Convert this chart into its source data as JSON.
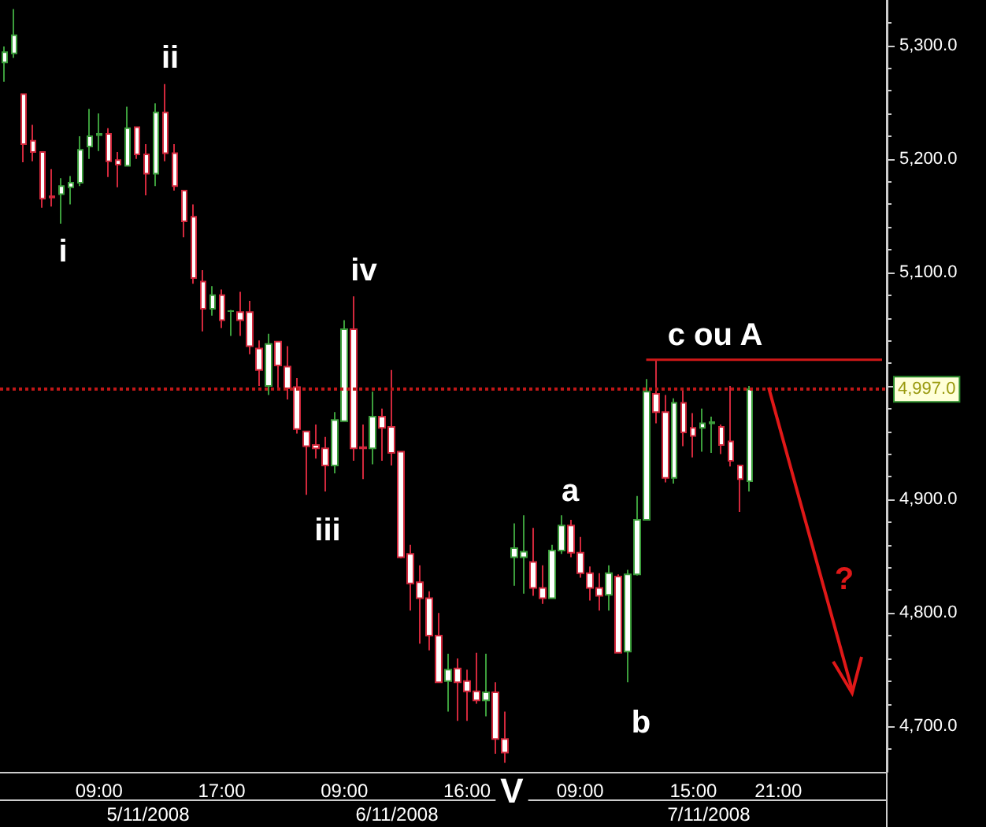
{
  "chart_data": {
    "type": "candlestick",
    "categories": [
      null,
      null,
      null,
      null,
      null,
      null,
      null,
      null,
      null,
      null,
      "09:00",
      null,
      null,
      null,
      null,
      null,
      null,
      null,
      null,
      null,
      null,
      null,
      null,
      "17:00",
      null,
      null,
      null,
      null,
      null,
      null,
      null,
      null,
      null,
      null,
      null,
      null,
      "09:00",
      null,
      null,
      null,
      null,
      null,
      null,
      null,
      null,
      null,
      null,
      null,
      null,
      "16:00",
      null,
      null,
      null,
      null,
      null,
      null,
      null,
      null,
      null,
      null,
      null,
      "09:00",
      null,
      null,
      null,
      null,
      null,
      null,
      null,
      null,
      null,
      null,
      null,
      "15:00",
      null,
      null,
      null,
      null,
      null,
      null,
      null,
      null,
      "21:00",
      null,
      null,
      null,
      null,
      null,
      null,
      null,
      null,
      null,
      null,
      null
    ],
    "series": [
      {
        "colors": [
          "#3c9e3c",
          "#3c9e3c",
          "#d2283c",
          "#d2283c",
          "#d2283c",
          "#d2283c",
          "#3c9e3c",
          "#3c9e3c",
          "#3c9e3c",
          "#3c9e3c",
          "#3c9e3c",
          "#d2283c",
          "#d2283c",
          "#3c9e3c",
          "#d2283c",
          "#d2283c",
          "#3c9e3c",
          "#d2283c",
          "#d2283c",
          "#d2283c",
          "#d2283c",
          "#d2283c",
          "#3c9e3c",
          "#d2283c",
          "#3c9e3c",
          "#d2283c",
          "#d2283c",
          "#d2283c",
          "#3c9e3c",
          "#d2283c",
          "#d2283c",
          "#d2283c",
          "#d2283c",
          "#d2283c",
          "#d2283c",
          "#3c9e3c",
          "#3c9e3c",
          "#d2283c",
          "#d2283c",
          "#3c9e3c",
          "#d2283c",
          "#d2283c",
          "#d2283c",
          "#d2283c",
          "#d2283c",
          "#d2283c",
          "#d2283c",
          "#3c9e3c",
          "#d2283c",
          "#d2283c",
          "#d2283c",
          "#3c9e3c",
          "#d2283c",
          "#d2283c",
          "#3c9e3c",
          "#3c9e3c",
          "#d2283c",
          "#d2283c",
          "#3c9e3c",
          "#3c9e3c",
          "#d2283c",
          "#d2283c",
          "#d2283c",
          "#d2283c",
          "#3c9e3c",
          "#d2283c",
          "#3c9e3c",
          "#3c9e3c",
          "#3c9e3c",
          "#d2283c",
          "#d2283c",
          "#3c9e3c",
          "#d2283c",
          "#d2283c",
          "#3c9e3c",
          "#3c9e3c",
          "#d2283c",
          "#d2283c",
          "#d2283c",
          "#3c9e3c",
          null,
          null,
          null,
          null,
          null,
          null,
          null,
          null,
          null,
          null,
          null,
          null,
          null,
          null
        ],
        "ohlc": [
          [
            5285,
            5299,
            5268,
            5294
          ],
          [
            5293,
            5332,
            5289,
            5309
          ],
          [
            5257,
            5257,
            5197,
            5213
          ],
          [
            5216,
            5230,
            5198,
            5206
          ],
          [
            5206,
            5206,
            5157,
            5165
          ],
          [
            5167,
            5191,
            5158,
            5166
          ],
          [
            5169,
            5183,
            5143,
            5176
          ],
          [
            5175,
            5185,
            5160,
            5179
          ],
          [
            5179,
            5220,
            5176,
            5208
          ],
          [
            5211,
            5244,
            5200,
            5220
          ],
          [
            5221,
            5240,
            5207,
            5222
          ],
          [
            5222,
            5227,
            5184,
            5198
          ],
          [
            5199,
            5206,
            5175,
            5195
          ],
          [
            5194,
            5246,
            5194,
            5227
          ],
          [
            5228,
            5228,
            5200,
            5204
          ],
          [
            5204,
            5213,
            5168,
            5187
          ],
          [
            5187,
            5249,
            5176,
            5241
          ],
          [
            5241,
            5266,
            5198,
            5205
          ],
          [
            5205,
            5213,
            5172,
            5176
          ],
          [
            5172,
            5172,
            5131,
            5145
          ],
          [
            5149,
            5160,
            5090,
            5095
          ],
          [
            5092,
            5102,
            5048,
            5068
          ],
          [
            5068,
            5088,
            5062,
            5080
          ],
          [
            5080,
            5085,
            5051,
            5058
          ],
          [
            5066,
            5067,
            5044,
            5066
          ],
          [
            5065,
            5083,
            5044,
            5058
          ],
          [
            5065,
            5075,
            5028,
            5035
          ],
          [
            5033,
            5040,
            5000,
            5014
          ],
          [
            5000,
            5046,
            4992,
            5037
          ],
          [
            5039,
            5039,
            4996,
            5018
          ],
          [
            5017,
            5035,
            4988,
            4998
          ],
          [
            4999,
            5007,
            4958,
            4962
          ],
          [
            4960,
            4960,
            4904,
            4947
          ],
          [
            4948,
            4966,
            4936,
            4945
          ],
          [
            4945,
            4955,
            4907,
            4930
          ],
          [
            4930,
            4977,
            4923,
            4970
          ],
          [
            4969,
            5058,
            4969,
            5050
          ],
          [
            5050,
            5079,
            4934,
            4945
          ],
          [
            4946,
            4966,
            4918,
            4945
          ],
          [
            4945,
            4995,
            4931,
            4973
          ],
          [
            4973,
            4980,
            4934,
            4963
          ],
          [
            4964,
            5014,
            4930,
            4941
          ],
          [
            4942,
            4942,
            4848,
            4849
          ],
          [
            4852,
            4860,
            4802,
            4826
          ],
          [
            4827,
            4842,
            4773,
            4813
          ],
          [
            4813,
            4819,
            4767,
            4780
          ],
          [
            4780,
            4800,
            4739,
            4739
          ],
          [
            4740,
            4764,
            4713,
            4750
          ],
          [
            4751,
            4760,
            4705,
            4739
          ],
          [
            4740,
            4750,
            4705,
            4731
          ],
          [
            4731,
            4765,
            4720,
            4723
          ],
          [
            4723,
            4764,
            4709,
            4730
          ],
          [
            4730,
            4739,
            4676,
            4689
          ],
          [
            4689,
            4713,
            4668,
            4677
          ],
          [
            4849,
            4879,
            4824,
            4857
          ],
          [
            4849,
            4886,
            4817,
            4854
          ],
          [
            4845,
            4875,
            4815,
            4822
          ],
          [
            4822,
            4842,
            4808,
            4813
          ],
          [
            4813,
            4860,
            4813,
            4855
          ],
          [
            4855,
            4886,
            4852,
            4877
          ],
          [
            4877,
            4882,
            4849,
            4853
          ],
          [
            4853,
            4867,
            4831,
            4835
          ],
          [
            4835,
            4841,
            4811,
            4822
          ],
          [
            4822,
            4835,
            4802,
            4815
          ],
          [
            4816,
            4842,
            4802,
            4835
          ],
          [
            4832,
            4834,
            4765,
            4765
          ],
          [
            4766,
            4838,
            4739,
            4834
          ],
          [
            4834,
            4903,
            4833,
            4882
          ],
          [
            4882,
            5006,
            4882,
            4995
          ],
          [
            4993,
            5023,
            4967,
            4977
          ],
          [
            4977,
            4992,
            4915,
            4919
          ],
          [
            4919,
            4989,
            4914,
            4985
          ],
          [
            4985,
            4996,
            4947,
            4959
          ],
          [
            4963,
            4976,
            4937,
            4956
          ],
          [
            4963,
            4980,
            4942,
            4967
          ],
          [
            4967,
            4973,
            4941,
            4968
          ],
          [
            4964,
            4966,
            4940,
            4948
          ],
          [
            4951,
            5000,
            4929,
            4934
          ],
          [
            4930,
            4930,
            4889,
            4918
          ],
          [
            4916,
            5000,
            4907,
            4997
          ],
          null,
          null,
          null,
          null,
          null,
          null,
          null,
          null,
          null,
          null,
          null,
          null,
          null,
          null
        ]
      },
      {
        "type": "line",
        "color": "#d01818",
        "marker": "none",
        "values": [
          null,
          null,
          null,
          null,
          null,
          null,
          null,
          null,
          null,
          null,
          null,
          null,
          null,
          null,
          null,
          null,
          null,
          null,
          null,
          null,
          null,
          null,
          null,
          null,
          null,
          null,
          null,
          null,
          null,
          null,
          null,
          null,
          null,
          null,
          null,
          null,
          null,
          null,
          null,
          null,
          null,
          null,
          null,
          null,
          null,
          null,
          null,
          null,
          null,
          null,
          null,
          null,
          null,
          null,
          null,
          null,
          null,
          null,
          null,
          null,
          null,
          null,
          null,
          null,
          null,
          null,
          null,
          null,
          5023,
          5023,
          5023,
          5023,
          5023,
          5023,
          5023,
          5023,
          5023,
          5023,
          5023,
          5023,
          5023,
          5023,
          5023,
          5023,
          5023,
          5023,
          5023,
          5023,
          5023,
          5023,
          5023,
          5023,
          5023,
          5023
        ]
      }
    ],
    "ylim": [
      4660,
      5340
    ],
    "yticks": [
      {
        "value": 4700,
        "label": "4,700.0"
      },
      {
        "value": 4800,
        "label": "4,800.0"
      },
      {
        "value": 4900,
        "label": "4,900.0"
      },
      {
        "value": 5000,
        "label": null
      },
      {
        "value": 5100,
        "label": "5,100.0"
      },
      {
        "value": 5200,
        "label": "5,200.0"
      },
      {
        "value": 5300,
        "label": "5,300.0"
      }
    ],
    "ref_lines": [
      {
        "axis": "y",
        "value": 4997,
        "label": "4,997.0",
        "color": "#c01818",
        "line_style": "dotted"
      }
    ],
    "annotations": [
      "i",
      "ii",
      "iii",
      "iv",
      "V",
      "a",
      "b",
      "c ou A",
      "?",
      "5/11/2008",
      "6/11/2008",
      "7/11/2008"
    ]
  }
}
